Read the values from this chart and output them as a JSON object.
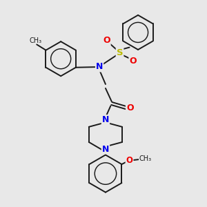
{
  "bg_color": "#e8e8e8",
  "bond_color": "#1a1a1a",
  "N_color": "#0000ee",
  "O_color": "#ee0000",
  "S_color": "#bbbb00",
  "line_width": 1.4,
  "fig_size": [
    3.0,
    3.0
  ],
  "dpi": 100,
  "xlim": [
    0,
    10
  ],
  "ylim": [
    0,
    10
  ]
}
